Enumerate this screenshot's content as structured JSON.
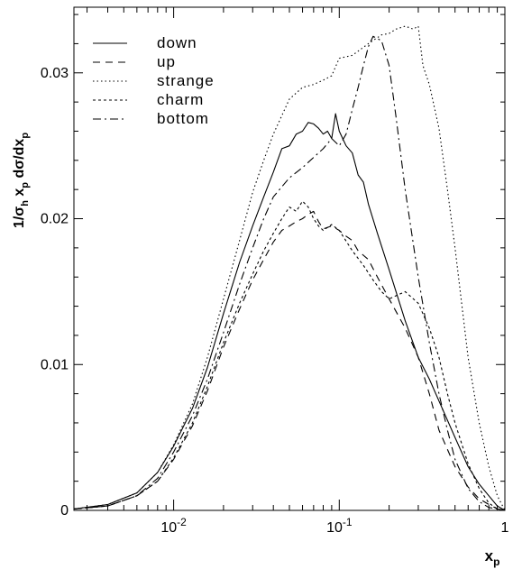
{
  "chart_data": {
    "type": "line",
    "title": "",
    "xscale": "log",
    "xlim": [
      0.0025,
      1.0
    ],
    "ylim": [
      0,
      0.0345
    ],
    "xlabel": {
      "base": "x",
      "sub": "p"
    },
    "ylabel": {
      "text": "1/σh xp dσ/dxp"
    },
    "y_ticks": [
      0,
      0.01,
      0.02,
      0.03
    ],
    "y_tick_labels": [
      "0",
      "0.01",
      "0.02",
      "0.03"
    ],
    "x_ticks": [
      0.01,
      0.1,
      1
    ],
    "x_tick_labels": [
      {
        "base": "10",
        "exp": "-2"
      },
      {
        "base": "10",
        "exp": "-1"
      },
      {
        "base": "1",
        "exp": ""
      }
    ],
    "grid": false,
    "legend_position": "top-left",
    "series": [
      {
        "name": "down",
        "dash": "",
        "x": [
          0.0025,
          0.004,
          0.006,
          0.008,
          0.01,
          0.013,
          0.016,
          0.02,
          0.025,
          0.03,
          0.035,
          0.04,
          0.045,
          0.05,
          0.055,
          0.06,
          0.065,
          0.07,
          0.075,
          0.08,
          0.085,
          0.09,
          0.095,
          0.1,
          0.11,
          0.12,
          0.13,
          0.14,
          0.15,
          0.17,
          0.2,
          0.25,
          0.3,
          0.35,
          0.4,
          0.5,
          0.6,
          0.7,
          0.8,
          0.9,
          1.0
        ],
        "y": [
          0.0001,
          0.0004,
          0.0012,
          0.0026,
          0.0044,
          0.007,
          0.0098,
          0.0135,
          0.017,
          0.0195,
          0.0215,
          0.0232,
          0.0248,
          0.025,
          0.0258,
          0.026,
          0.0266,
          0.0265,
          0.0262,
          0.0258,
          0.026,
          0.0255,
          0.0272,
          0.026,
          0.025,
          0.0245,
          0.023,
          0.0225,
          0.021,
          0.019,
          0.0165,
          0.013,
          0.0105,
          0.009,
          0.0075,
          0.005,
          0.003,
          0.0018,
          0.001,
          0.0003,
          0.0
        ]
      },
      {
        "name": "up",
        "dash": "8,6",
        "x": [
          0.0025,
          0.004,
          0.006,
          0.008,
          0.01,
          0.013,
          0.016,
          0.02,
          0.025,
          0.03,
          0.035,
          0.04,
          0.045,
          0.05,
          0.055,
          0.06,
          0.065,
          0.07,
          0.075,
          0.08,
          0.09,
          0.1,
          0.11,
          0.12,
          0.13,
          0.15,
          0.17,
          0.2,
          0.25,
          0.3,
          0.35,
          0.4,
          0.5,
          0.6,
          0.7,
          0.8,
          0.9,
          1.0
        ],
        "y": [
          0.0001,
          0.0003,
          0.001,
          0.002,
          0.0035,
          0.0058,
          0.0082,
          0.0112,
          0.0138,
          0.0158,
          0.0172,
          0.0184,
          0.0192,
          0.0195,
          0.0198,
          0.02,
          0.0203,
          0.0205,
          0.0198,
          0.0193,
          0.0195,
          0.0192,
          0.0188,
          0.0185,
          0.0178,
          0.0172,
          0.016,
          0.0145,
          0.0125,
          0.0105,
          0.008,
          0.0055,
          0.003,
          0.0016,
          0.0008,
          0.0004,
          0.0001,
          0.0
        ]
      },
      {
        "name": "strange",
        "dash": "1.5,3",
        "x": [
          0.0025,
          0.004,
          0.006,
          0.008,
          0.01,
          0.013,
          0.016,
          0.02,
          0.025,
          0.03,
          0.035,
          0.04,
          0.05,
          0.06,
          0.07,
          0.08,
          0.09,
          0.1,
          0.12,
          0.15,
          0.18,
          0.2,
          0.22,
          0.25,
          0.28,
          0.3,
          0.32,
          0.35,
          0.4,
          0.45,
          0.5,
          0.6,
          0.7,
          0.8,
          0.9,
          1.0
        ],
        "y": [
          0.0001,
          0.0004,
          0.0012,
          0.0026,
          0.0045,
          0.0073,
          0.0105,
          0.0145,
          0.0185,
          0.0218,
          0.024,
          0.0258,
          0.0282,
          0.029,
          0.0292,
          0.0295,
          0.0298,
          0.031,
          0.0312,
          0.032,
          0.0326,
          0.0327,
          0.033,
          0.0332,
          0.033,
          0.0332,
          0.0305,
          0.0292,
          0.0262,
          0.022,
          0.018,
          0.0105,
          0.006,
          0.003,
          0.001,
          0.0
        ]
      },
      {
        "name": "charm",
        "dash": "3,3",
        "x": [
          0.0025,
          0.004,
          0.006,
          0.008,
          0.01,
          0.013,
          0.016,
          0.02,
          0.025,
          0.03,
          0.035,
          0.04,
          0.045,
          0.05,
          0.055,
          0.06,
          0.065,
          0.07,
          0.075,
          0.08,
          0.09,
          0.1,
          0.12,
          0.14,
          0.16,
          0.18,
          0.2,
          0.25,
          0.3,
          0.35,
          0.4,
          0.45,
          0.5,
          0.6,
          0.7,
          0.8,
          0.9,
          1.0
        ],
        "y": [
          0.0001,
          0.0003,
          0.001,
          0.002,
          0.0036,
          0.006,
          0.0085,
          0.0115,
          0.0142,
          0.0162,
          0.0178,
          0.019,
          0.02,
          0.0208,
          0.0205,
          0.0212,
          0.0208,
          0.02,
          0.0195,
          0.0192,
          0.0196,
          0.0192,
          0.0178,
          0.0168,
          0.0158,
          0.015,
          0.0145,
          0.015,
          0.0142,
          0.0125,
          0.0105,
          0.008,
          0.006,
          0.0032,
          0.0015,
          0.0005,
          0.0001,
          0.0
        ]
      },
      {
        "name": "bottom",
        "dash": "9,4,2,4",
        "x": [
          0.0025,
          0.004,
          0.006,
          0.008,
          0.01,
          0.013,
          0.016,
          0.02,
          0.025,
          0.03,
          0.035,
          0.04,
          0.05,
          0.06,
          0.07,
          0.08,
          0.09,
          0.1,
          0.11,
          0.12,
          0.13,
          0.14,
          0.15,
          0.16,
          0.18,
          0.2,
          0.22,
          0.25,
          0.3,
          0.35,
          0.4,
          0.45,
          0.5,
          0.6,
          0.7,
          0.8,
          0.9,
          1.0
        ],
        "y": [
          0.0001,
          0.0003,
          0.001,
          0.0022,
          0.004,
          0.0065,
          0.009,
          0.0122,
          0.0155,
          0.018,
          0.02,
          0.0215,
          0.0228,
          0.0235,
          0.0242,
          0.0248,
          0.0255,
          0.025,
          0.0258,
          0.0275,
          0.029,
          0.0305,
          0.0318,
          0.0325,
          0.0322,
          0.0305,
          0.027,
          0.022,
          0.016,
          0.0115,
          0.008,
          0.0055,
          0.0035,
          0.0015,
          0.0006,
          0.0002,
          0.0001,
          0.0
        ]
      }
    ]
  }
}
